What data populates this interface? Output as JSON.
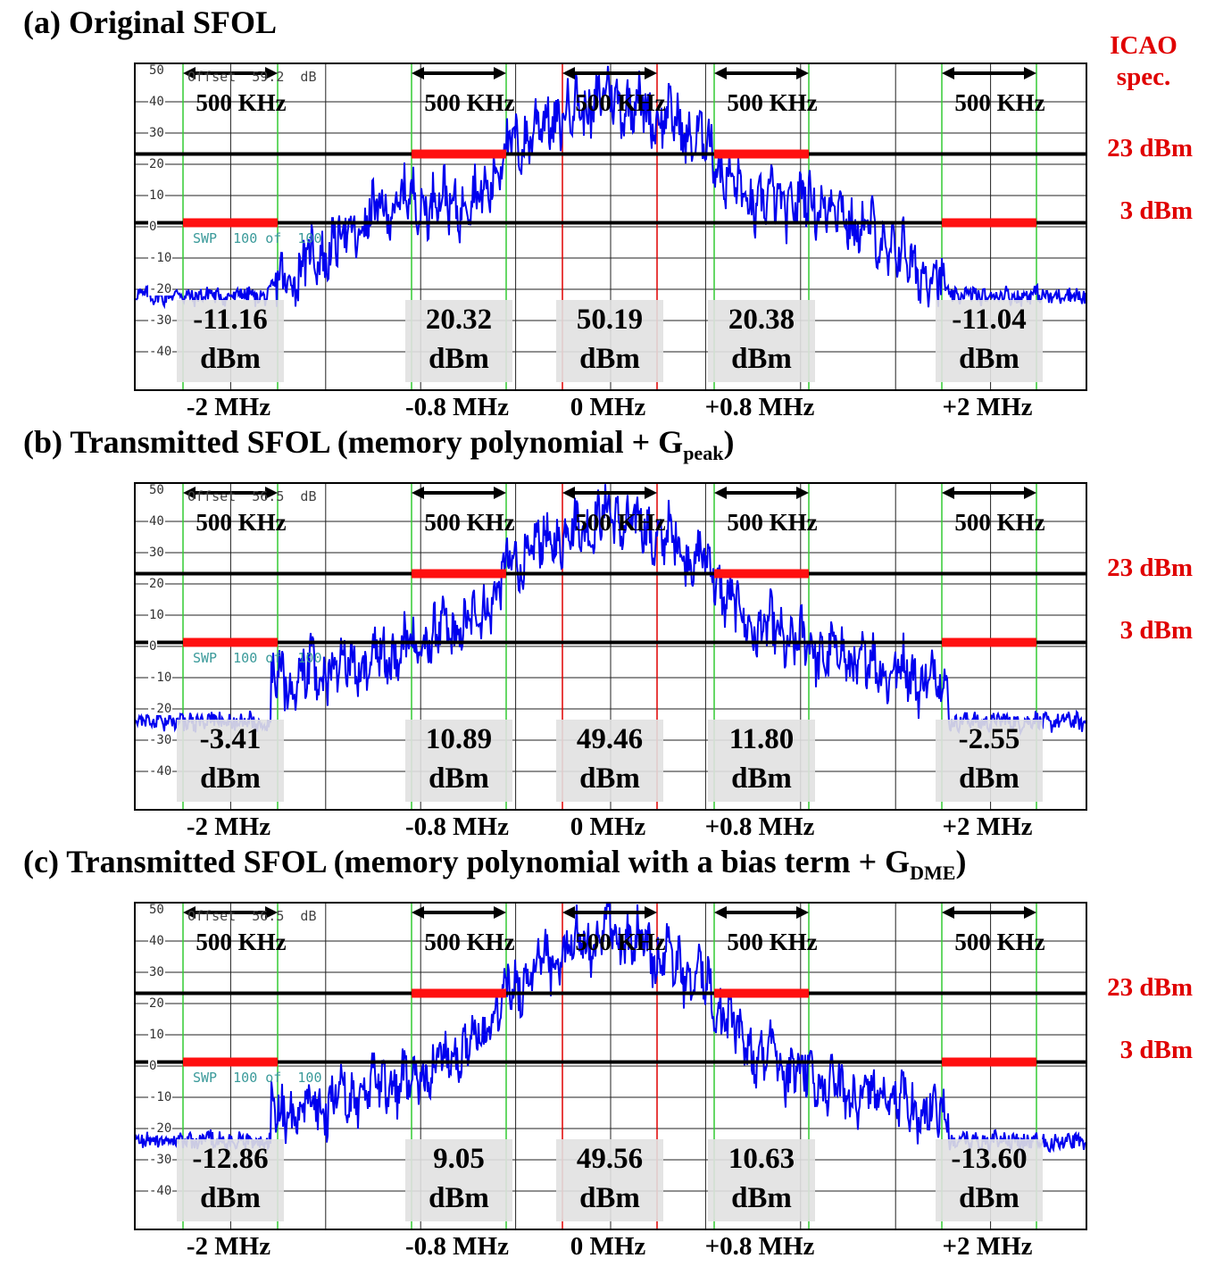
{
  "icao": {
    "line1": "ICAO",
    "line2": "spec."
  },
  "chart_data": [
    {
      "type": "line",
      "title": "(a) Original SFOL",
      "title_sub": "",
      "title_end": "",
      "offset_text": "Offset  59.2  dB",
      "sweep_text": "SWP  100 of  100",
      "y_ticks": [
        "50",
        "40",
        "30",
        "20",
        "10",
        "0",
        "-10",
        "-20",
        "-30",
        "-40"
      ],
      "x_labels": [
        "-2 MHz",
        "-0.8 MHz",
        "0 MHz",
        "+0.8 MHz",
        "+2 MHz"
      ],
      "x_ticks_mhz": [
        -2,
        -0.8,
        0,
        0.8,
        2
      ],
      "window_width": "500 KHz",
      "spec_levels_dbm": [
        23,
        3
      ],
      "spec_labels": [
        "23 dBm",
        "3 dBm"
      ],
      "spectrum_profile": {
        "peak_db": 42,
        "shoulder_db": 26,
        "mid_db": 8,
        "outer_db": -20,
        "noise_floor_db": -22
      },
      "measurements": [
        {
          "x_mhz": -2,
          "value": "-11.16",
          "unit": "dBm"
        },
        {
          "x_mhz": -0.8,
          "value": "20.32",
          "unit": "dBm"
        },
        {
          "x_mhz": 0,
          "value": "50.19",
          "unit": "dBm"
        },
        {
          "x_mhz": 0.8,
          "value": "20.38",
          "unit": "dBm"
        },
        {
          "x_mhz": 2,
          "value": "-11.04",
          "unit": "dBm"
        }
      ],
      "series_color": "#0000ee"
    },
    {
      "type": "line",
      "title": "(b) Transmitted SFOL (memory polynomial + G",
      "title_sub": "peak",
      "title_end": ")",
      "offset_text": "Offset  56.5  dB",
      "sweep_text": "SWP  100 of  100",
      "y_ticks": [
        "50",
        "40",
        "30",
        "20",
        "10",
        "0",
        "-10",
        "-20",
        "-30",
        "-40"
      ],
      "x_labels": [
        "-2 MHz",
        "-0.8 MHz",
        "0 MHz",
        "+0.8 MHz",
        "+2 MHz"
      ],
      "x_ticks_mhz": [
        -2,
        -0.8,
        0,
        0.8,
        2
      ],
      "window_width": "500 KHz",
      "spec_levels_dbm": [
        23,
        3
      ],
      "spec_labels": [
        "23 dBm",
        "3 dBm"
      ],
      "spectrum_profile": {
        "peak_db": 42,
        "shoulder_db": 26,
        "mid_db": -2,
        "outer_db": -12,
        "noise_floor_db": -24
      },
      "measurements": [
        {
          "x_mhz": -2,
          "value": "-3.41",
          "unit": "dBm"
        },
        {
          "x_mhz": -0.8,
          "value": "10.89",
          "unit": "dBm"
        },
        {
          "x_mhz": 0,
          "value": "49.46",
          "unit": "dBm"
        },
        {
          "x_mhz": 0.8,
          "value": "11.80",
          "unit": "dBm"
        },
        {
          "x_mhz": 2,
          "value": "-2.55",
          "unit": "dBm"
        }
      ],
      "series_color": "#0000ee"
    },
    {
      "type": "line",
      "title": "(c) Transmitted SFOL (memory polynomial with a bias term + G",
      "title_sub": "DME",
      "title_end": ")",
      "offset_text": "Offset  56.5  dB",
      "sweep_text": "SWP  100 of  100",
      "y_ticks": [
        "50",
        "40",
        "30",
        "20",
        "10",
        "0",
        "-10",
        "-20",
        "-30",
        "-40"
      ],
      "x_labels": [
        "-2 MHz",
        "-0.8 MHz",
        "0 MHz",
        "+0.8 MHz",
        "+2 MHz"
      ],
      "x_ticks_mhz": [
        -2,
        -0.8,
        0,
        0.8,
        2
      ],
      "window_width": "500 KHz",
      "spec_levels_dbm": [
        23,
        3
      ],
      "spec_labels": [
        "23 dBm",
        "3 dBm"
      ],
      "spectrum_profile": {
        "peak_db": 43,
        "shoulder_db": 25,
        "mid_db": -6,
        "outer_db": -16,
        "noise_floor_db": -24
      },
      "measurements": [
        {
          "x_mhz": -2,
          "value": "-12.86",
          "unit": "dBm"
        },
        {
          "x_mhz": -0.8,
          "value": "9.05",
          "unit": "dBm"
        },
        {
          "x_mhz": 0,
          "value": "49.56",
          "unit": "dBm"
        },
        {
          "x_mhz": 0.8,
          "value": "10.63",
          "unit": "dBm"
        },
        {
          "x_mhz": 2,
          "value": "-13.60",
          "unit": "dBm"
        }
      ],
      "series_color": "#0000ee"
    }
  ]
}
